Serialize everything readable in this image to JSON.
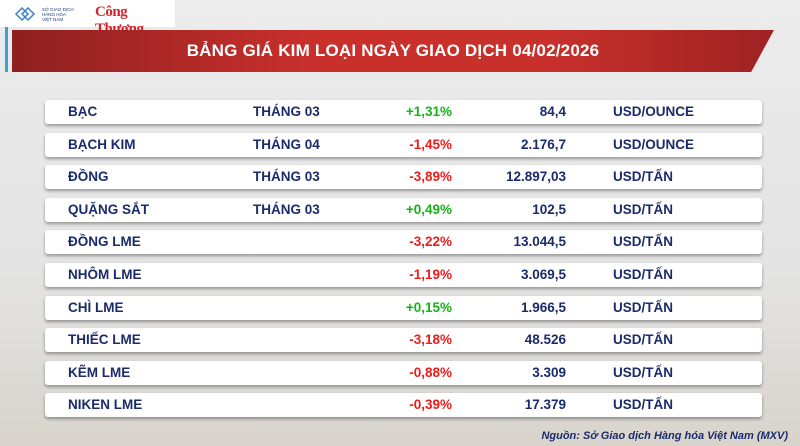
{
  "header": {
    "logo_mxv": "SỞ GIAO DỊCH HÀNG HÓA VIỆT NAM",
    "logo_ct": "Công Thương",
    "title": "BẢNG GIÁ KIM LOẠI NGÀY GIAO DỊCH 04/02/2026"
  },
  "colors": {
    "up": "#16b31a",
    "down": "#ee1b1b",
    "text": "#1b2a6b",
    "banner": "#c9302c"
  },
  "rows": [
    {
      "name": "BẠC",
      "month": "THÁNG 03",
      "change": "+1,31%",
      "dir": "up",
      "price": "84,4",
      "unit": "USD/OUNCE"
    },
    {
      "name": "BẠCH KIM",
      "month": "THÁNG 04",
      "change": "-1,45%",
      "dir": "down",
      "price": "2.176,7",
      "unit": "USD/OUNCE"
    },
    {
      "name": "ĐỒNG",
      "month": "THÁNG 03",
      "change": "-3,89%",
      "dir": "down",
      "price": "12.897,03",
      "unit": "USD/TẤN"
    },
    {
      "name": "QUẶNG SẮT",
      "month": "THÁNG 03",
      "change": "+0,49%",
      "dir": "up",
      "price": "102,5",
      "unit": "USD/TẤN"
    },
    {
      "name": "ĐỒNG LME",
      "month": "",
      "change": "-3,22%",
      "dir": "down",
      "price": "13.044,5",
      "unit": "USD/TẤN"
    },
    {
      "name": "NHÔM LME",
      "month": "",
      "change": "-1,19%",
      "dir": "down",
      "price": "3.069,5",
      "unit": "USD/TẤN"
    },
    {
      "name": "CHÌ LME",
      "month": "",
      "change": "+0,15%",
      "dir": "up",
      "price": "1.966,5",
      "unit": "USD/TẤN"
    },
    {
      "name": "THIẾC LME",
      "month": "",
      "change": "-3,18%",
      "dir": "down",
      "price": "48.526",
      "unit": "USD/TẤN"
    },
    {
      "name": "KẼM LME",
      "month": "",
      "change": "-0,88%",
      "dir": "down",
      "price": "3.309",
      "unit": "USD/TẤN"
    },
    {
      "name": "NIKEN LME",
      "month": "",
      "change": "-0,39%",
      "dir": "down",
      "price": "17.379",
      "unit": "USD/TẤN"
    }
  ],
  "source": "Nguồn: Sở Giao dịch Hàng hóa Việt Nam (MXV)"
}
